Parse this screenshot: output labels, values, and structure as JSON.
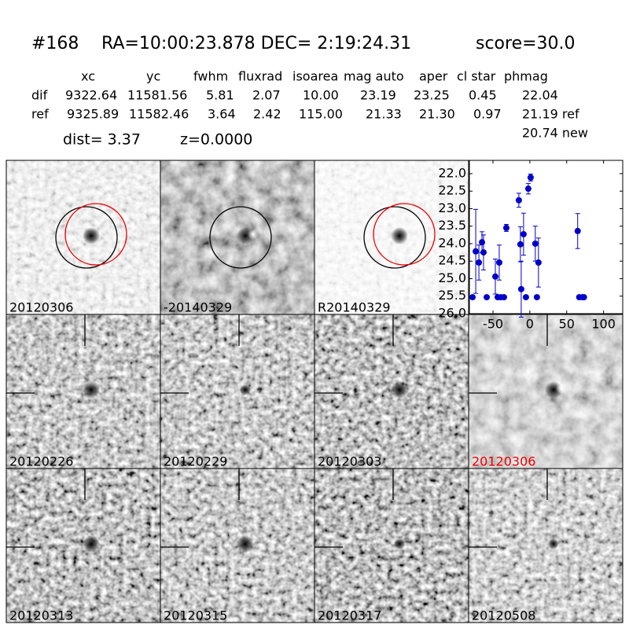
{
  "header": {
    "id": "#168",
    "coords": "RA=10:00:23.878 DEC= 2:19:24.31",
    "score": "score=30.0"
  },
  "table": {
    "columns": [
      "xc",
      "yc",
      "fwhm",
      "fluxrad",
      "isoarea",
      "mag auto",
      "aper",
      "cl star",
      "phmag"
    ],
    "rows": [
      [
        "dif",
        "9322.64",
        "11581.56",
        "5.81",
        "2.07",
        "10.00",
        "23.19",
        "23.25",
        "0.45",
        "22.04"
      ],
      [
        "ref",
        "9325.89",
        "11582.46",
        "3.64",
        "2.42",
        "115.00",
        "21.33",
        "21.30",
        "0.97",
        "21.19 ref"
      ]
    ],
    "extra": "20.74 new"
  },
  "dist": "dist=  3.37",
  "z": "z=0.0000",
  "stamps": [
    "20120306",
    "-20140329",
    "R20140329",
    "20120226",
    "20120229",
    "20120303",
    "20120306",
    "20120313",
    "20120315",
    "20120317",
    "20120508"
  ],
  "chart_data": {
    "type": "scatter",
    "x": [
      -77.7,
      -73.4,
      -69.1,
      -64.9,
      -62.8,
      -58.5,
      -46.8,
      -43.6,
      -41.5,
      -39.4,
      -35.1,
      -31.9,
      -14.9,
      -12.8,
      -11.7,
      -8.5,
      -5.3,
      -2.1,
      1.1,
      7.4,
      9.6,
      11.7,
      64.9,
      67.0,
      71.3,
      73.4
    ],
    "series": [
      {
        "color": "#0000cc",
        "values": [
          25.53,
          24.22,
          24.54,
          23.96,
          24.25,
          25.53,
          24.94,
          25.53,
          24.54,
          25.53,
          25.53,
          23.55,
          22.76,
          24.02,
          25.3,
          23.73,
          25.53,
          22.43,
          22.11,
          24.0,
          25.53,
          24.54,
          23.64,
          25.53,
          25.53,
          25.53
        ],
        "errors": [
          null,
          1.2,
          0.5,
          0.3,
          0.5,
          null,
          0.5,
          null,
          0.5,
          null,
          null,
          0.1,
          0.2,
          0.5,
          0.8,
          0.6,
          null,
          0.15,
          0.1,
          0.5,
          null,
          0.7,
          0.5,
          null,
          null,
          null
        ]
      }
    ],
    "xlim": [
      -82,
      126
    ],
    "ylim": [
      26.0,
      21.62
    ],
    "xticks": [
      -50,
      0,
      50,
      100
    ],
    "yticks": [
      {
        "value": 22,
        "label": "22.0"
      },
      22.5,
      {
        "value": 23,
        "label": "23.0"
      },
      23.5,
      {
        "value": 24,
        "label": "24.0"
      },
      24.5,
      {
        "value": 25,
        "label": "25.0"
      },
      25.5,
      {
        "value": 26,
        "label": "26.0"
      }
    ]
  }
}
